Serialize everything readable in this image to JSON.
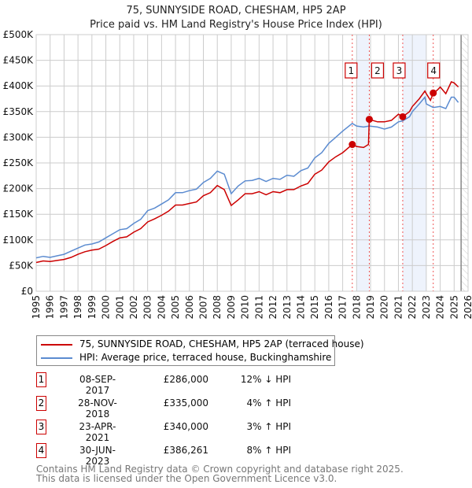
{
  "title": "75, SUNNYSIDE ROAD, CHESHAM, HP5 2AP",
  "subtitle": "Price paid vs. HM Land Registry's House Price Index (HPI)",
  "chart_data": {
    "type": "line",
    "ylim": [
      0,
      500000
    ],
    "xlim": [
      1995,
      2026
    ],
    "y_ticks": [
      {
        "v": 0,
        "label": "£0"
      },
      {
        "v": 50000,
        "label": "£50K"
      },
      {
        "v": 100000,
        "label": "£100K"
      },
      {
        "v": 150000,
        "label": "£150K"
      },
      {
        "v": 200000,
        "label": "£200K"
      },
      {
        "v": 250000,
        "label": "£250K"
      },
      {
        "v": 300000,
        "label": "£300K"
      },
      {
        "v": 350000,
        "label": "£350K"
      },
      {
        "v": 400000,
        "label": "£400K"
      },
      {
        "v": 450000,
        "label": "£450K"
      },
      {
        "v": 500000,
        "label": "£500K"
      }
    ],
    "x_ticks": [
      "1995",
      "1996",
      "1997",
      "1998",
      "1999",
      "2000",
      "2001",
      "2002",
      "2003",
      "2004",
      "2005",
      "2006",
      "2007",
      "2008",
      "2009",
      "2010",
      "2011",
      "2012",
      "2013",
      "2014",
      "2015",
      "2016",
      "2017",
      "2018",
      "2019",
      "2020",
      "2021",
      "2022",
      "2023",
      "2024",
      "2025",
      "2026"
    ],
    "series": [
      {
        "name": "75, SUNNYSIDE ROAD, CHESHAM, HP5 2AP (terraced house)",
        "color": "#cc0000",
        "x": [
          1995,
          1995.5,
          1996,
          1996.5,
          1997,
          1997.5,
          1998,
          1998.5,
          1999,
          1999.5,
          2000,
          2000.5,
          2001,
          2001.5,
          2002,
          2002.5,
          2003,
          2003.5,
          2004,
          2004.5,
          2005,
          2005.5,
          2006,
          2006.5,
          2007,
          2007.5,
          2008,
          2008.5,
          2009,
          2009.5,
          2010,
          2010.5,
          2011,
          2011.5,
          2012,
          2012.5,
          2013,
          2013.5,
          2014,
          2014.5,
          2015,
          2015.5,
          2016,
          2016.5,
          2017,
          2017.69,
          2018,
          2018.5,
          2018.85,
          2018.91,
          2019.5,
          2020,
          2020.5,
          2021,
          2021.31,
          2021.8,
          2022,
          2022.5,
          2022.9,
          2023,
          2023.3,
          2023.5,
          2023.8,
          2024,
          2024.4,
          2024.8,
          2025,
          2025.3
        ],
        "y": [
          56000,
          59000,
          58000,
          60000,
          62000,
          66000,
          72000,
          77000,
          80000,
          82000,
          89000,
          97000,
          104000,
          106000,
          115000,
          122000,
          135000,
          141000,
          148000,
          156000,
          168000,
          168000,
          171000,
          174000,
          186000,
          192000,
          206000,
          198000,
          167000,
          178000,
          190000,
          190000,
          194000,
          188000,
          194000,
          192000,
          198000,
          198000,
          205000,
          210000,
          228000,
          236000,
          252000,
          262000,
          270000,
          286000,
          282000,
          280000,
          286000,
          335000,
          330000,
          330000,
          333000,
          345000,
          340000,
          350000,
          360000,
          375000,
          390000,
          385000,
          372000,
          386261,
          392000,
          398000,
          385000,
          408000,
          406000,
          398000
        ]
      },
      {
        "name": "HPI: Average price, terraced house, Buckinghamshire",
        "color": "#5b8bd0",
        "x": [
          1995,
          1995.5,
          1996,
          1996.5,
          1997,
          1997.5,
          1998,
          1998.5,
          1999,
          1999.5,
          2000,
          2000.5,
          2001,
          2001.5,
          2002,
          2002.5,
          2003,
          2003.5,
          2004,
          2004.5,
          2005,
          2005.5,
          2006,
          2006.5,
          2007,
          2007.5,
          2008,
          2008.5,
          2009,
          2009.5,
          2010,
          2010.5,
          2011,
          2011.5,
          2012,
          2012.5,
          2013,
          2013.5,
          2014,
          2014.5,
          2015,
          2015.5,
          2016,
          2016.5,
          2017,
          2017.69,
          2018,
          2018.5,
          2018.9,
          2019.5,
          2020,
          2020.5,
          2021,
          2021.31,
          2021.8,
          2022,
          2022.5,
          2022.9,
          2023,
          2023.5,
          2024,
          2024.4,
          2024.8,
          2025,
          2025.3
        ],
        "y": [
          65000,
          68000,
          66000,
          69000,
          72000,
          78000,
          84000,
          90000,
          92000,
          96000,
          104000,
          112000,
          120000,
          122000,
          132000,
          140000,
          157000,
          162000,
          170000,
          178000,
          192000,
          192000,
          196000,
          199000,
          212000,
          220000,
          234000,
          228000,
          190000,
          205000,
          215000,
          216000,
          220000,
          214000,
          220000,
          218000,
          226000,
          224000,
          235000,
          240000,
          260000,
          270000,
          288000,
          300000,
          312000,
          327000,
          322000,
          320000,
          322000,
          320000,
          316000,
          320000,
          330000,
          332000,
          340000,
          350000,
          365000,
          378000,
          365000,
          358000,
          360000,
          356000,
          378000,
          378000,
          368000
        ]
      }
    ],
    "sales": [
      {
        "n": "1",
        "x": 2017.69,
        "y": 286000
      },
      {
        "n": "2",
        "x": 2018.91,
        "y": 335000
      },
      {
        "n": "3",
        "x": 2021.31,
        "y": 340000
      },
      {
        "n": "4",
        "x": 2023.5,
        "y": 386261
      }
    ],
    "shaded_ranges": [
      [
        2018.0,
        2018.91
      ],
      [
        2021.31,
        2023.0
      ]
    ],
    "forecast_from": 2025.5,
    "grid": true,
    "legend_position": "bottom"
  },
  "legend": [
    {
      "label": "75, SUNNYSIDE ROAD, CHESHAM, HP5 2AP (terraced house)",
      "color": "#cc0000"
    },
    {
      "label": "HPI: Average price, terraced house, Buckinghamshire",
      "color": "#5b8bd0"
    }
  ],
  "table": [
    {
      "n": "1",
      "date": "08-SEP-2017",
      "price": "£286,000",
      "hpi": "12% ↓ HPI"
    },
    {
      "n": "2",
      "date": "28-NOV-2018",
      "price": "£335,000",
      "hpi": "4% ↑ HPI"
    },
    {
      "n": "3",
      "date": "23-APR-2021",
      "price": "£340,000",
      "hpi": "3% ↑ HPI"
    },
    {
      "n": "4",
      "date": "30-JUN-2023",
      "price": "£386,261",
      "hpi": "8% ↑ HPI"
    }
  ],
  "footer": [
    "Contains HM Land Registry data © Crown copyright and database right 2025.",
    "This data is licensed under the Open Government Licence v3.0."
  ]
}
